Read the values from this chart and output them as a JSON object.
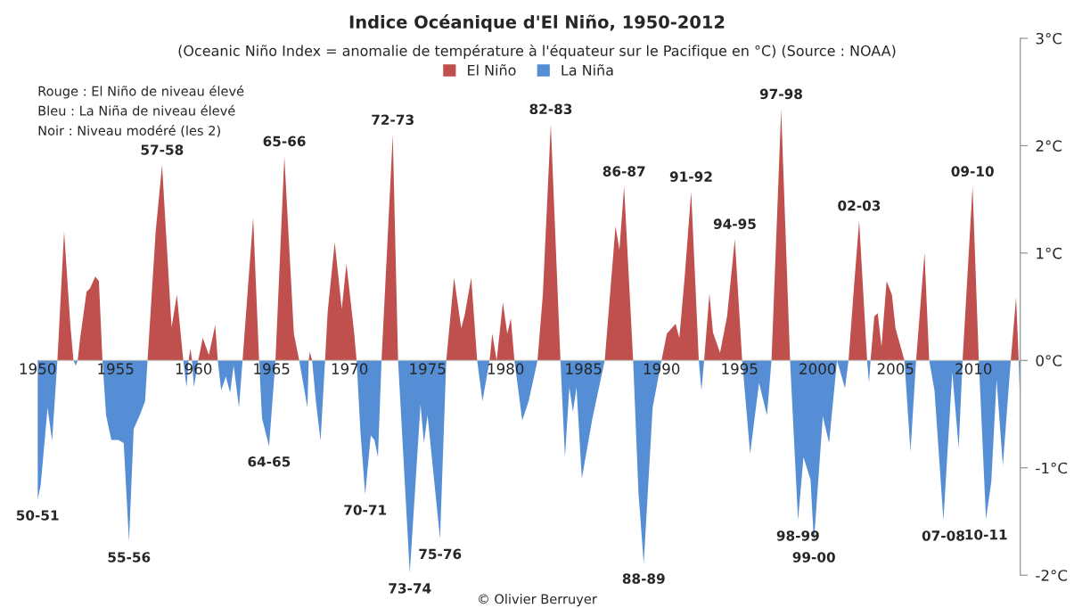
{
  "chart_data": {
    "type": "area",
    "title": "Indice Océanique d'El Niño, 1950-2012",
    "subtitle": "(Oceanic Niño Index = anomalie de température à l'équateur sur le Pacifique en °C) (Source : NOAA)",
    "series": [
      {
        "name": "El Niño",
        "color": "#c0504d",
        "x": [
          1951.27,
          1951.7,
          1952.1,
          1952.3,
          1952.57,
          1952.75,
          1953.14,
          1953.36,
          1953.7,
          1953.93,
          1954.16,
          1957.05,
          1957.57,
          1957.98,
          1958.59,
          1958.93,
          1959.34,
          1959.68,
          1959.8,
          1959.9,
          1960.3,
          1960.59,
          1960.98,
          1961.39,
          1961.55,
          1963.14,
          1963.82,
          1964.2,
          1965.25,
          1965.82,
          1966.43,
          1966.77,
          1967.38,
          1967.45,
          1967.6,
          1968.43,
          1968.6,
          1969.05,
          1969.5,
          1969.8,
          1970.3,
          1970.45,
          1972.05,
          1972.77,
          1973.11,
          1976.2,
          1976.7,
          1977.16,
          1977.39,
          1977.8,
          1978.18,
          1978.98,
          1979.15,
          1979.43,
          1979.83,
          1980.11,
          1980.34,
          1980.57,
          1982.05,
          1982.39,
          1982.9,
          1983.52,
          1986.36,
          1987.05,
          1987.3,
          1987.6,
          1988.18,
          1990.0,
          1990.34,
          1990.9,
          1991.14,
          1991.48,
          1991.9,
          1992.16,
          1992.39,
          1992.73,
          1993.07,
          1993.3,
          1993.75,
          1994.2,
          1994.7,
          1995.17,
          1997.05,
          1997.67,
          1998.24,
          2001.99,
          2002.33,
          2002.67,
          2003.18,
          2003.4,
          2003.64,
          2003.86,
          2004.1,
          2004.43,
          2004.77,
          2005.0,
          2005.57,
          2006.32,
          2006.86,
          2007.16,
          2009.3,
          2009.94,
          2010.34,
          2012.39,
          2012.73,
          2012.9
        ],
        "values": [
          0,
          1.2,
          0.33,
          0,
          0,
          0.23,
          0.64,
          0.67,
          0.78,
          0.74,
          0,
          0,
          1.2,
          1.82,
          0.31,
          0.61,
          0,
          0,
          0.11,
          0,
          0,
          0.21,
          0.05,
          0.33,
          0,
          0,
          1.33,
          0,
          0,
          1.9,
          0.25,
          0,
          0,
          0.08,
          0,
          0,
          0.46,
          1.1,
          0.48,
          0.9,
          0.25,
          0,
          0,
          2.1,
          0,
          0,
          0.77,
          0.3,
          0.43,
          0.77,
          0,
          0,
          0.25,
          0,
          0.54,
          0.25,
          0.39,
          0,
          0,
          0.61,
          2.2,
          0,
          0,
          1.25,
          1.03,
          1.62,
          0,
          0,
          0.25,
          0.34,
          0.21,
          0.77,
          1.57,
          0.74,
          0,
          0,
          0.62,
          0.26,
          0.07,
          0.41,
          1.13,
          0,
          0,
          2.34,
          0,
          0,
          0.67,
          1.3,
          0,
          0,
          0.41,
          0.44,
          0.13,
          0.74,
          0.61,
          0.3,
          0,
          0,
          1.0,
          0,
          0,
          1.62,
          0,
          0,
          0.59,
          0
        ]
      },
      {
        "name": "La Niña",
        "color": "#558ed5",
        "x": [
          1950.0,
          1950.2,
          1950.64,
          1950.93,
          1951.27,
          1952.3,
          1952.45,
          1952.57,
          1954.16,
          1954.39,
          1954.73,
          1955.18,
          1955.52,
          1955.86,
          1956.16,
          1956.55,
          1956.89,
          1957.05,
          1959.34,
          1959.55,
          1959.68,
          1959.9,
          1960.02,
          1960.3,
          1961.55,
          1961.77,
          1962.07,
          1962.34,
          1962.57,
          1962.91,
          1963.14,
          1964.2,
          1964.39,
          1964.84,
          1965.25,
          1966.77,
          1967.3,
          1967.38,
          1967.6,
          1967.84,
          1968.14,
          1968.43,
          1970.45,
          1970.7,
          1971.0,
          1971.36,
          1971.59,
          1971.82,
          1972.05,
          1973.11,
          1973.86,
          1974.55,
          1974.77,
          1975.0,
          1975.8,
          1976.2,
          1978.18,
          1978.52,
          1978.98,
          1979.43,
          1980.57,
          1981.07,
          1981.48,
          1982.05,
          1983.52,
          1983.81,
          1984.09,
          1984.32,
          1984.55,
          1984.89,
          1985.57,
          1986.36,
          1988.18,
          1988.52,
          1988.86,
          1989.43,
          1990.0,
          1992.39,
          1992.56,
          1992.73,
          1995.17,
          1995.68,
          1996.25,
          1996.76,
          1997.05,
          1998.24,
          1998.75,
          1999.1,
          1999.55,
          1999.77,
          2000.34,
          2000.74,
          2001.25,
          2001.76,
          2001.99,
          2003.18,
          2003.3,
          2003.4,
          2005.57,
          2005.96,
          2006.32,
          2007.16,
          2007.5,
          2008.07,
          2008.64,
          2009.05,
          2009.3,
          2010.34,
          2010.8,
          2011.14,
          2011.48,
          2011.88,
          2012.39,
          2012.9,
          2012.98
        ],
        "values": [
          -1.3,
          -1.16,
          -0.44,
          -0.75,
          0,
          0,
          -0.05,
          0,
          0,
          -0.51,
          -0.74,
          -0.74,
          -0.77,
          -1.69,
          -0.64,
          -0.51,
          -0.38,
          0,
          0,
          -0.25,
          0,
          0,
          -0.25,
          0,
          0,
          -0.28,
          -0.15,
          -0.3,
          -0.05,
          -0.44,
          0,
          0,
          -0.54,
          -0.8,
          0,
          0,
          -0.44,
          0,
          0,
          -0.38,
          -0.75,
          0,
          0,
          -0.67,
          -1.25,
          -0.7,
          -0.74,
          -0.9,
          0,
          0,
          -1.98,
          -0.41,
          -0.77,
          -0.51,
          -1.66,
          0,
          0,
          -0.38,
          0,
          0,
          0,
          -0.56,
          -0.38,
          0,
          0,
          -0.9,
          -0.25,
          -0.48,
          -0.25,
          -1.1,
          -0.54,
          0,
          0,
          -1.23,
          -1.89,
          -0.44,
          0,
          0,
          -0.28,
          0,
          0,
          -0.87,
          -0.21,
          -0.51,
          0,
          0,
          -1.49,
          -0.9,
          -1.11,
          -1.69,
          -0.52,
          -0.77,
          0,
          -0.26,
          0,
          0,
          -0.21,
          0,
          0,
          -0.85,
          0,
          0,
          -0.28,
          -1.49,
          -0.11,
          -0.82,
          0,
          0,
          -1.48,
          -1.13,
          -0.18,
          -0.98,
          0,
          0,
          -0.38
        ]
      }
    ],
    "xlim": [
      1950,
      2013
    ],
    "xticks": [
      1950,
      1955,
      1960,
      1965,
      1970,
      1975,
      1980,
      1985,
      1990,
      1995,
      2000,
      2005,
      2010
    ],
    "ylim": [
      -2,
      3
    ],
    "yticks": [
      {
        "value": -2,
        "label": "-2°C"
      },
      {
        "value": -1,
        "label": "-1°C"
      },
      {
        "value": 0,
        "label": "0°C"
      },
      {
        "value": 1,
        "label": "1°C"
      },
      {
        "value": 2,
        "label": "2°C"
      },
      {
        "value": 3,
        "label": "3°C"
      }
    ],
    "grid": false,
    "legend": "top",
    "annotations": [
      "Rouge : El Niño de niveau élevé",
      "Bleu : La Niña de niveau élevé",
      "Noir : Niveau modéré (les 2)",
      "© Olivier Berruyer",
      {
        "text": "50-51",
        "x": 1950.0,
        "y": -1.3
      },
      {
        "text": "55-56",
        "x": 1955.86,
        "y": -1.69
      },
      {
        "text": "57-58",
        "x": 1957.98,
        "y": 1.82
      },
      {
        "text": "64-65",
        "x": 1964.84,
        "y": -0.8
      },
      {
        "text": "65-66",
        "x": 1965.82,
        "y": 1.9
      },
      {
        "text": "70-71",
        "x": 1971.0,
        "y": -1.25
      },
      {
        "text": "72-73",
        "x": 1972.77,
        "y": 2.1
      },
      {
        "text": "73-74",
        "x": 1973.86,
        "y": -1.98
      },
      {
        "text": "75-76",
        "x": 1975.8,
        "y": -1.66
      },
      {
        "text": "82-83",
        "x": 1982.9,
        "y": 2.2
      },
      {
        "text": "86-87",
        "x": 1987.6,
        "y": 1.62
      },
      {
        "text": "88-89",
        "x": 1988.86,
        "y": -1.89
      },
      {
        "text": "91-92",
        "x": 1991.9,
        "y": 1.57
      },
      {
        "text": "94-95",
        "x": 1994.7,
        "y": 1.13
      },
      {
        "text": "97-98",
        "x": 1997.67,
        "y": 2.34
      },
      {
        "text": "98-99",
        "x": 1998.75,
        "y": -1.49
      },
      {
        "text": "99-00",
        "x": 1999.77,
        "y": -1.69
      },
      {
        "text": "02-03",
        "x": 2002.67,
        "y": 1.3
      },
      {
        "text": "07-08",
        "x": 2008.07,
        "y": -1.49
      },
      {
        "text": "09-10",
        "x": 2009.94,
        "y": 1.62
      },
      {
        "text": "10-11",
        "x": 2010.8,
        "y": -1.48
      }
    ]
  }
}
